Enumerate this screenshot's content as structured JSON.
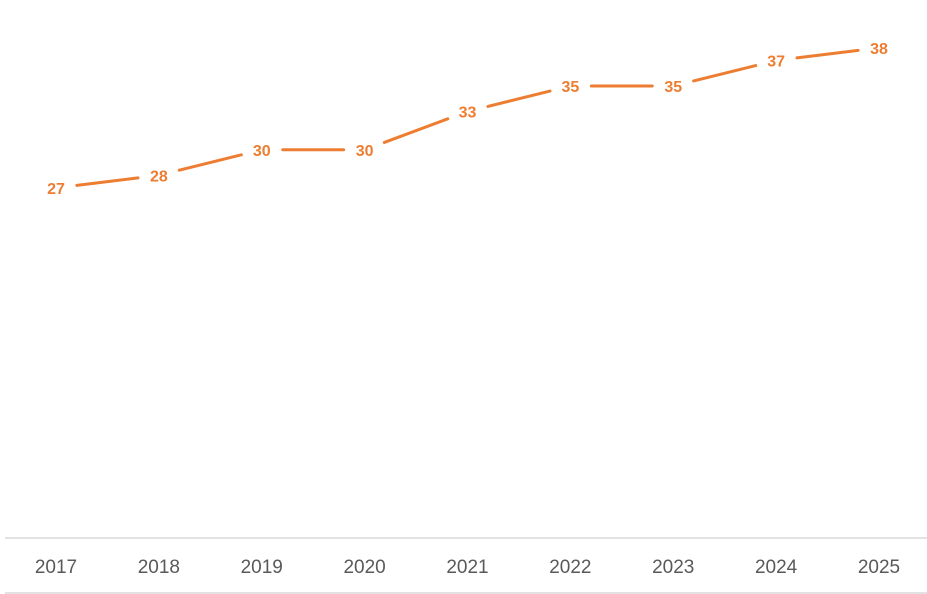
{
  "chart_data": {
    "type": "line",
    "title": "",
    "xlabel": "",
    "ylabel": "",
    "categories": [
      "2017",
      "2018",
      "2019",
      "2020",
      "2021",
      "2022",
      "2023",
      "2024",
      "2025"
    ],
    "series": [
      {
        "values": [
          27,
          28,
          30,
          30,
          33,
          35,
          35,
          37,
          38
        ],
        "color": "#ED7D31"
      }
    ],
    "ylim": [
      0,
      40
    ],
    "grid": false,
    "legend": "none",
    "data_labels": true
  },
  "colors": {
    "series_line": "#ED7D31",
    "axis_line": "#D9D9D9",
    "tick_text": "#595959"
  }
}
